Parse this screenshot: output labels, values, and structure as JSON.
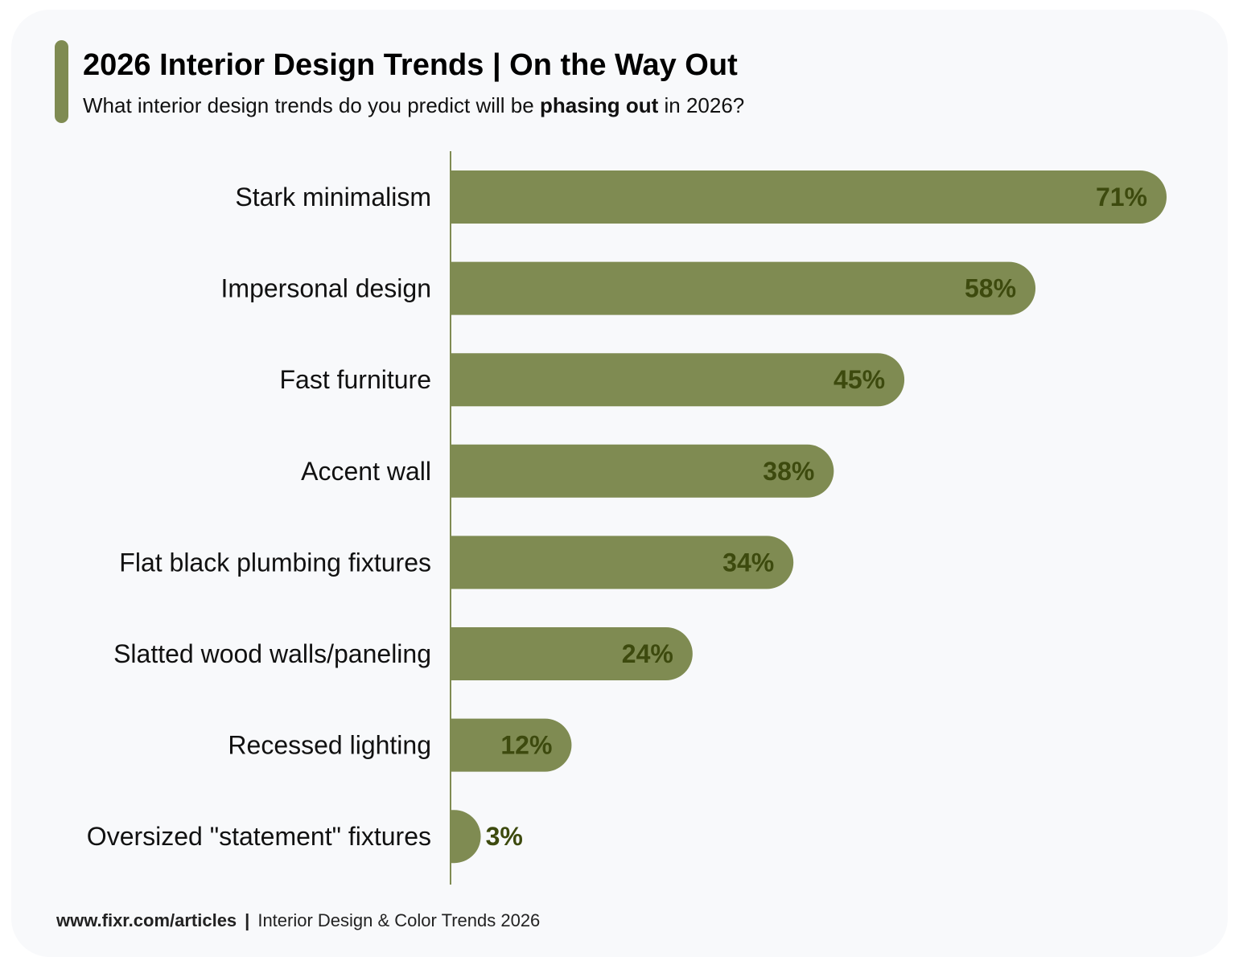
{
  "header": {
    "title": "2026 Interior Design Trends | On the Way Out",
    "subtitle_before": "What interior design trends do you predict will be ",
    "subtitle_bold": "phasing out",
    "subtitle_after": " in 2026?"
  },
  "footer": {
    "source": "www.fixr.com/articles",
    "separator": "|",
    "report": "Interior Design & Color Trends 2026"
  },
  "colors": {
    "bar": "#7f8b52",
    "value_label": "#3d4a0e",
    "accent": "#7f8b52"
  },
  "chart_data": {
    "type": "bar",
    "orientation": "horizontal",
    "title": "2026 Interior Design Trends | On the Way Out",
    "categories": [
      "Stark minimalism",
      "Impersonal design",
      "Fast furniture",
      "Accent wall",
      "Flat black plumbing fixtures",
      "Slatted wood walls/paneling",
      "Recessed lighting",
      "Oversized \"statement\" fixtures"
    ],
    "values": [
      71,
      58,
      45,
      38,
      34,
      24,
      12,
      3
    ],
    "value_labels": [
      "71%",
      "58%",
      "45%",
      "38%",
      "34%",
      "24%",
      "12%",
      "3%"
    ],
    "xlim": [
      0,
      75
    ],
    "unit": "%",
    "grid": false,
    "legend": "none"
  }
}
